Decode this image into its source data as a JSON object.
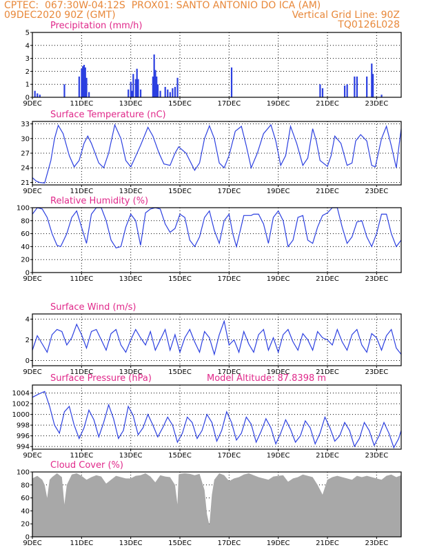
{
  "header": {
    "line1_left": "CPTEC:  067:30W-04:12S  PROX01: SANTO ANTONIO DO ICA (AM)",
    "line2_left": "09DEC2020 90Z (GMT)",
    "line2_right": "Vertical Grid Line: 90Z",
    "line3_right": "TQ0126L028"
  },
  "colors": {
    "header": "#e8883a",
    "title": "#e0288a",
    "series": "#2b3fe0",
    "cloud": "#a8a8a8",
    "grid": "#000000"
  },
  "x_axis": {
    "ticks": [
      "9DEC",
      "11DEC",
      "13DEC",
      "15DEC",
      "17DEC",
      "19DEC",
      "21DEC",
      "23DEC"
    ],
    "tick_days": [
      0,
      2,
      4,
      6,
      8,
      10,
      12,
      14
    ],
    "range_days": [
      0,
      15
    ]
  },
  "chart_data": [
    {
      "id": "precip",
      "type": "bar",
      "title": "Precipitation (mm/h)",
      "ylim": [
        0,
        5
      ],
      "yticks": [
        0,
        1,
        2,
        3,
        4,
        5
      ],
      "x": [
        0.1,
        0.2,
        0.3,
        1.3,
        1.9,
        2.0,
        2.05,
        2.1,
        2.15,
        2.2,
        2.3,
        3.9,
        4.0,
        4.05,
        4.1,
        4.2,
        4.25,
        4.3,
        4.4,
        4.9,
        4.95,
        5.0,
        5.05,
        5.1,
        5.2,
        5.4,
        5.5,
        5.6,
        5.7,
        5.8,
        5.9,
        8.1,
        11.7,
        11.8,
        12.7,
        12.8,
        13.1,
        13.2,
        13.6,
        13.8,
        13.85,
        14.2
      ],
      "values": [
        0.5,
        0.3,
        0.2,
        1.0,
        1.6,
        2.2,
        2.4,
        2.5,
        2.3,
        1.5,
        0.4,
        0.6,
        1.2,
        0.5,
        1.8,
        1.4,
        2.2,
        1.4,
        0.6,
        1.6,
        3.3,
        2.1,
        1.6,
        1.0,
        0.5,
        0.8,
        0.6,
        0.4,
        0.7,
        0.8,
        1.5,
        2.3,
        1.0,
        0.7,
        0.9,
        1.0,
        1.6,
        1.6,
        1.6,
        2.6,
        1.8,
        0.2
      ]
    },
    {
      "id": "temp",
      "type": "line",
      "title": "Surface Temperature (nC)",
      "ylim": [
        20.5,
        33.5
      ],
      "yticks": [
        21,
        24,
        27,
        30,
        33
      ],
      "x": [
        0.0,
        0.15,
        0.3,
        0.5,
        0.75,
        0.9,
        1.05,
        1.25,
        1.5,
        1.7,
        1.9,
        2.1,
        2.25,
        2.4,
        2.7,
        2.9,
        3.1,
        3.35,
        3.6,
        3.8,
        4.0,
        4.15,
        4.4,
        4.7,
        4.9,
        5.15,
        5.35,
        5.6,
        5.8,
        5.95,
        6.25,
        6.6,
        6.8,
        7.0,
        7.2,
        7.4,
        7.6,
        7.8,
        8.0,
        8.25,
        8.5,
        8.7,
        8.9,
        9.15,
        9.4,
        9.7,
        9.9,
        10.1,
        10.3,
        10.5,
        10.75,
        11.0,
        11.2,
        11.4,
        11.55,
        11.7,
        12.0,
        12.15,
        12.3,
        12.55,
        12.8,
        13.0,
        13.15,
        13.35,
        13.6,
        13.8,
        13.95,
        14.2,
        14.4,
        14.6,
        14.8,
        14.9,
        15.0
      ],
      "values": [
        22.0,
        21.3,
        21.0,
        20.9,
        25.5,
        30.0,
        32.7,
        31.0,
        26.5,
        24.2,
        25.5,
        29.0,
        30.5,
        29.0,
        25.0,
        24.0,
        27.0,
        32.8,
        30.0,
        25.5,
        24.2,
        25.8,
        28.6,
        32.3,
        30.5,
        27.0,
        24.8,
        24.5,
        27.0,
        28.3,
        27.0,
        23.5,
        25.0,
        30.0,
        32.6,
        30.0,
        25.0,
        24.0,
        26.5,
        31.5,
        32.5,
        28.5,
        24.0,
        27.0,
        31.0,
        32.8,
        29.5,
        24.5,
        26.5,
        32.5,
        29.0,
        24.5,
        26.0,
        32.0,
        29.5,
        25.5,
        24.3,
        26.5,
        30.5,
        29.0,
        24.5,
        25.0,
        29.5,
        30.8,
        29.5,
        24.5,
        24.2,
        30.0,
        32.5,
        28.5,
        24.0,
        28.0,
        32.0
      ]
    },
    {
      "id": "rh",
      "type": "line",
      "title": "Relative Humidity (%)",
      "ylim": [
        0,
        100
      ],
      "yticks": [
        0,
        20,
        40,
        60,
        80,
        100
      ],
      "x": [
        0.0,
        0.2,
        0.4,
        0.6,
        0.8,
        1.0,
        1.15,
        1.4,
        1.6,
        1.8,
        2.0,
        2.2,
        2.4,
        2.6,
        2.8,
        3.0,
        3.2,
        3.4,
        3.6,
        3.8,
        4.0,
        4.2,
        4.4,
        4.6,
        4.8,
        5.0,
        5.2,
        5.4,
        5.6,
        5.8,
        6.0,
        6.2,
        6.4,
        6.6,
        6.8,
        7.0,
        7.2,
        7.4,
        7.6,
        7.8,
        8.0,
        8.15,
        8.3,
        8.6,
        8.9,
        9.0,
        9.2,
        9.4,
        9.6,
        9.8,
        10.0,
        10.2,
        10.4,
        10.6,
        10.8,
        11.0,
        11.2,
        11.4,
        11.6,
        11.8,
        12.0,
        12.2,
        12.4,
        12.6,
        12.8,
        13.0,
        13.2,
        13.4,
        13.6,
        13.8,
        14.0,
        14.2,
        14.4,
        14.6,
        14.8,
        15.0
      ],
      "values": [
        90,
        100,
        98,
        85,
        60,
        42,
        40,
        60,
        85,
        95,
        70,
        45,
        90,
        100,
        100,
        80,
        50,
        38,
        40,
        70,
        90,
        80,
        42,
        92,
        98,
        100,
        98,
        75,
        62,
        68,
        90,
        85,
        50,
        40,
        55,
        85,
        95,
        65,
        45,
        80,
        90,
        60,
        40,
        88,
        88,
        90,
        90,
        75,
        45,
        85,
        95,
        80,
        40,
        50,
        85,
        88,
        50,
        45,
        70,
        88,
        92,
        100,
        100,
        70,
        45,
        55,
        78,
        80,
        55,
        40,
        60,
        90,
        90,
        60,
        40,
        50
      ]
    },
    {
      "id": "wind",
      "type": "line",
      "title": "Surface Wind (m/s)",
      "ylim": [
        -0.5,
        4.5
      ],
      "yticks": [
        0,
        2,
        4
      ],
      "x": [
        0.0,
        0.2,
        0.4,
        0.6,
        0.8,
        1.0,
        1.2,
        1.4,
        1.6,
        1.8,
        2.0,
        2.2,
        2.4,
        2.6,
        2.8,
        3.0,
        3.2,
        3.4,
        3.6,
        3.8,
        4.0,
        4.2,
        4.4,
        4.6,
        4.8,
        5.0,
        5.2,
        5.4,
        5.6,
        5.8,
        6.0,
        6.2,
        6.4,
        6.6,
        6.8,
        7.0,
        7.2,
        7.4,
        7.6,
        7.8,
        8.0,
        8.2,
        8.4,
        8.6,
        8.8,
        9.0,
        9.2,
        9.4,
        9.6,
        9.8,
        10.0,
        10.2,
        10.4,
        10.6,
        10.8,
        11.0,
        11.2,
        11.4,
        11.6,
        11.8,
        12.0,
        12.2,
        12.4,
        12.6,
        12.8,
        13.0,
        13.2,
        13.4,
        13.6,
        13.8,
        14.0,
        14.2,
        14.4,
        14.6,
        14.8,
        15.0
      ],
      "values": [
        1.0,
        2.4,
        1.6,
        0.8,
        2.5,
        3.0,
        2.8,
        1.5,
        2.2,
        3.5,
        2.5,
        1.2,
        2.8,
        3.0,
        2.0,
        1.0,
        2.6,
        3.0,
        1.5,
        0.8,
        2.0,
        3.0,
        2.2,
        1.5,
        2.8,
        1.0,
        2.0,
        3.0,
        1.0,
        2.5,
        0.8,
        2.2,
        3.0,
        1.8,
        0.8,
        2.8,
        2.2,
        0.6,
        2.5,
        3.8,
        1.5,
        2.0,
        0.8,
        2.8,
        1.6,
        0.8,
        2.5,
        3.0,
        1.0,
        2.2,
        0.8,
        2.5,
        3.0,
        1.8,
        1.0,
        2.6,
        2.0,
        1.0,
        2.8,
        2.2,
        2.0,
        1.5,
        3.0,
        1.8,
        1.0,
        2.5,
        3.0,
        1.5,
        0.8,
        2.6,
        2.2,
        1.0,
        2.4,
        3.0,
        1.2,
        0.6
      ]
    },
    {
      "id": "pres",
      "type": "line",
      "title": "Surface Pressure (hPa)",
      "annotation": "Model Altitude: 87.8398 m",
      "ylim": [
        993.5,
        1005.5
      ],
      "yticks": [
        994,
        996,
        998,
        1000,
        1002,
        1004
      ],
      "x": [
        0.0,
        0.25,
        0.5,
        0.7,
        0.9,
        1.1,
        1.3,
        1.5,
        1.7,
        1.9,
        2.1,
        2.3,
        2.5,
        2.7,
        2.9,
        3.1,
        3.3,
        3.5,
        3.7,
        3.9,
        4.1,
        4.3,
        4.5,
        4.7,
        4.9,
        5.1,
        5.3,
        5.5,
        5.7,
        5.9,
        6.1,
        6.3,
        6.5,
        6.7,
        6.9,
        7.1,
        7.3,
        7.5,
        7.7,
        7.9,
        8.1,
        8.3,
        8.5,
        8.7,
        8.9,
        9.1,
        9.3,
        9.5,
        9.7,
        9.9,
        10.1,
        10.3,
        10.5,
        10.7,
        10.9,
        11.1,
        11.3,
        11.5,
        11.7,
        11.9,
        12.1,
        12.3,
        12.5,
        12.7,
        12.9,
        13.1,
        13.3,
        13.5,
        13.7,
        13.9,
        14.1,
        14.3,
        14.5,
        14.7,
        14.9,
        15.0
      ],
      "values": [
        1003.2,
        1003.8,
        1004.3,
        1001.5,
        998.0,
        996.5,
        1000.5,
        1001.5,
        998.0,
        995.5,
        997.5,
        1000.8,
        999.0,
        995.8,
        998.5,
        1001.8,
        999.2,
        995.5,
        997.0,
        1001.5,
        999.8,
        996.2,
        997.5,
        1000.0,
        998.0,
        995.8,
        997.5,
        999.5,
        998.0,
        994.8,
        996.5,
        999.5,
        998.5,
        995.5,
        997.0,
        1000.0,
        998.5,
        995.0,
        997.0,
        1000.5,
        998.5,
        995.2,
        996.5,
        999.5,
        998.2,
        994.8,
        996.8,
        999.2,
        997.5,
        994.5,
        996.5,
        999.0,
        997.2,
        994.8,
        996.0,
        998.8,
        997.5,
        994.5,
        996.5,
        999.5,
        997.5,
        995.0,
        996.0,
        998.5,
        997.0,
        994.0,
        995.5,
        998.5,
        997.0,
        994.2,
        996.0,
        998.5,
        996.5,
        993.8,
        995.5,
        997.0
      ]
    },
    {
      "id": "cloud",
      "type": "area",
      "title": "Cloud Cover (%)",
      "ylim": [
        0,
        100
      ],
      "yticks": [
        0,
        20,
        40,
        60,
        80,
        100
      ],
      "x": [
        0.0,
        0.2,
        0.4,
        0.5,
        0.6,
        0.7,
        0.8,
        1.0,
        1.2,
        1.3,
        1.4,
        1.6,
        1.8,
        2.0,
        2.2,
        2.4,
        2.6,
        2.8,
        3.0,
        3.2,
        3.4,
        3.6,
        3.8,
        4.0,
        4.2,
        4.4,
        4.6,
        4.8,
        5.0,
        5.2,
        5.4,
        5.6,
        5.8,
        5.9,
        5.95,
        6.0,
        6.2,
        6.4,
        6.6,
        6.8,
        7.0,
        7.1,
        7.2,
        7.3,
        7.4,
        7.6,
        7.8,
        8.0,
        8.2,
        8.4,
        8.6,
        8.8,
        9.0,
        9.2,
        9.4,
        9.6,
        9.8,
        10.0,
        10.2,
        10.4,
        10.6,
        10.8,
        11.0,
        11.2,
        11.4,
        11.6,
        11.8,
        12.0,
        12.2,
        12.4,
        12.6,
        12.8,
        13.0,
        13.2,
        13.4,
        13.6,
        13.8,
        14.0,
        14.2,
        14.4,
        14.6,
        14.8,
        15.0
      ],
      "values": [
        90,
        94,
        88,
        80,
        60,
        88,
        92,
        98,
        92,
        50,
        80,
        96,
        98,
        94,
        88,
        92,
        95,
        93,
        82,
        88,
        94,
        92,
        90,
        90,
        94,
        95,
        98,
        93,
        84,
        95,
        93,
        92,
        80,
        50,
        96,
        97,
        98,
        97,
        95,
        97,
        72,
        35,
        18,
        65,
        88,
        98,
        95,
        86,
        90,
        92,
        96,
        98,
        95,
        92,
        90,
        88,
        93,
        94,
        95,
        85,
        90,
        92,
        96,
        94,
        92,
        80,
        65,
        88,
        92,
        94,
        92,
        90,
        88,
        94,
        92,
        94,
        92,
        90,
        88,
        94,
        96,
        92,
        95
      ]
    }
  ]
}
